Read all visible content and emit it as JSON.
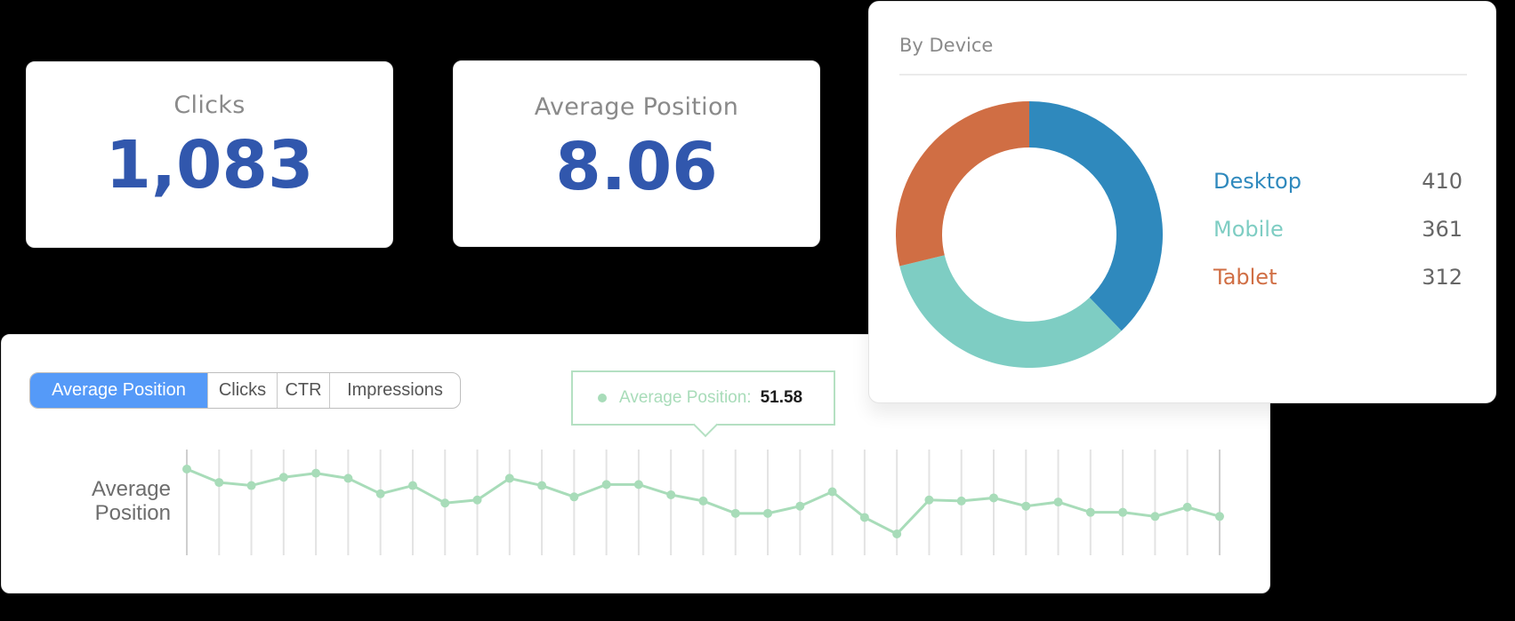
{
  "colors": {
    "accent_blue": "#3157ad",
    "segment_active": "#559af8",
    "line": "#a8dcb9",
    "desktop": "#2f89bd",
    "mobile": "#7ecdc3",
    "tablet": "#d06e44"
  },
  "cards": {
    "clicks": {
      "label": "Clicks",
      "value": "1,083"
    },
    "average_position": {
      "label": "Average Position",
      "value": "8.06"
    }
  },
  "trend": {
    "tabs": [
      {
        "label": "Average Position",
        "active": true
      },
      {
        "label": "Clicks",
        "active": false
      },
      {
        "label": "CTR",
        "active": false
      },
      {
        "label": "Impressions",
        "active": false
      }
    ],
    "tooltip": {
      "label": "Average Position:",
      "value": "51.58"
    },
    "y_axis_label_line1": "Average",
    "y_axis_label_line2": "Position"
  },
  "device": {
    "title": "By Device",
    "items": [
      {
        "label": "Desktop",
        "value": "410"
      },
      {
        "label": "Mobile",
        "value": "361"
      },
      {
        "label": "Tablet",
        "value": "312"
      }
    ]
  },
  "chart_data": [
    {
      "type": "pie",
      "title": "By Device",
      "categories": [
        "Desktop",
        "Mobile",
        "Tablet"
      ],
      "values": [
        410,
        361,
        312
      ],
      "colors": [
        "#2f89bd",
        "#7ecdc3",
        "#d06e44"
      ],
      "donut": true,
      "legend_position": "right"
    },
    {
      "type": "line",
      "title": "",
      "ylabel": "Average Position",
      "xlabel": "",
      "grid": "vertical",
      "tooltip": {
        "label": "Average Position",
        "value": 51.58
      },
      "x": [
        1,
        2,
        3,
        4,
        5,
        6,
        7,
        8,
        9,
        10,
        11,
        12,
        13,
        14,
        15,
        16,
        17,
        18,
        19,
        20,
        21,
        22,
        23,
        24,
        25,
        26,
        27,
        28,
        29,
        30,
        31,
        32,
        33
      ],
      "values": [
        22,
        35,
        38,
        30,
        26,
        31,
        46,
        38,
        55,
        52,
        31,
        38,
        49,
        37,
        37,
        47,
        53,
        65,
        65,
        58,
        44,
        69,
        85,
        52,
        53,
        50,
        58,
        54,
        64,
        64,
        68,
        59,
        68
      ]
    }
  ]
}
